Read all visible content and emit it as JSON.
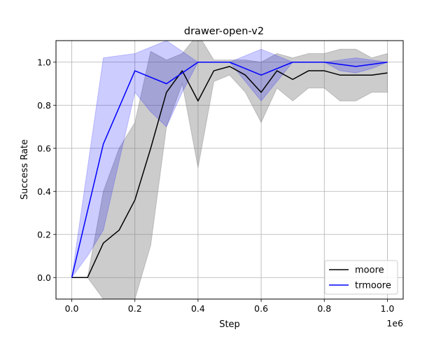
{
  "chart_data": {
    "type": "line",
    "title": "drawer-open-v2",
    "xlabel": "Step",
    "ylabel": "Success Rate",
    "x_offset_label": "1e6",
    "xlim": [
      -0.05,
      1.05
    ],
    "ylim": [
      -0.1,
      1.1
    ],
    "x_ticks": [
      0.0,
      0.2,
      0.4,
      0.6,
      0.8,
      1.0
    ],
    "x_tick_labels": [
      "0.0",
      "0.2",
      "0.4",
      "0.6",
      "0.8",
      "1.0"
    ],
    "y_ticks": [
      0.0,
      0.2,
      0.4,
      0.6,
      0.8,
      1.0
    ],
    "y_tick_labels": [
      "0.0",
      "0.2",
      "0.4",
      "0.6",
      "0.8",
      "1.0"
    ],
    "grid": true,
    "legend_position": "lower-right",
    "x": [
      0,
      0.05,
      0.1,
      0.15,
      0.2,
      0.25,
      0.3,
      0.35,
      0.4,
      0.45,
      0.5,
      0.55,
      0.6,
      0.65,
      0.7,
      0.75,
      0.8,
      0.85,
      0.9,
      0.95,
      1.0
    ],
    "series": [
      {
        "name": "moore",
        "color": "#000000",
        "band_color": "#808080",
        "values": [
          0,
          0,
          0.16,
          0.22,
          0.36,
          0.6,
          0.86,
          0.96,
          0.82,
          0.96,
          0.98,
          0.94,
          0.86,
          0.96,
          0.92,
          0.96,
          0.96,
          0.94,
          0.94,
          0.94,
          0.95
        ],
        "lower": [
          0,
          0,
          -0.1,
          -0.16,
          -0.1,
          0.15,
          0.7,
          0.9,
          0.51,
          0.91,
          0.94,
          0.86,
          0.72,
          0.88,
          0.82,
          0.88,
          0.88,
          0.82,
          0.82,
          0.86,
          0.86
        ],
        "upper": [
          0,
          0,
          0.4,
          0.6,
          0.72,
          1.05,
          1.01,
          1.04,
          1.13,
          1.01,
          1.01,
          1.01,
          1.0,
          1.04,
          1.02,
          1.04,
          1.04,
          1.06,
          1.06,
          1.02,
          1.04
        ]
      },
      {
        "name": "trmoore",
        "color": "#0000ff",
        "band_color": "#0000ff",
        "values": [
          0,
          0.31,
          0.62,
          0.79,
          0.96,
          0.93,
          0.9,
          0.95,
          1.0,
          1.0,
          1.0,
          0.97,
          0.94,
          0.97,
          1.0,
          1.0,
          1.0,
          0.99,
          0.98,
          0.99,
          1.0
        ],
        "lower": [
          0,
          0.1,
          0.22,
          0.54,
          0.86,
          0.77,
          0.7,
          0.86,
          1.0,
          1.0,
          1.0,
          0.91,
          0.82,
          0.91,
          1.0,
          1.0,
          1.0,
          0.96,
          0.95,
          0.97,
          1.0
        ],
        "upper": [
          0,
          0.51,
          1.02,
          1.03,
          1.04,
          1.07,
          1.1,
          1.05,
          1.0,
          1.0,
          1.0,
          1.03,
          1.06,
          1.03,
          1.0,
          1.0,
          1.0,
          1.01,
          1.02,
          1.01,
          1.0
        ]
      }
    ]
  }
}
